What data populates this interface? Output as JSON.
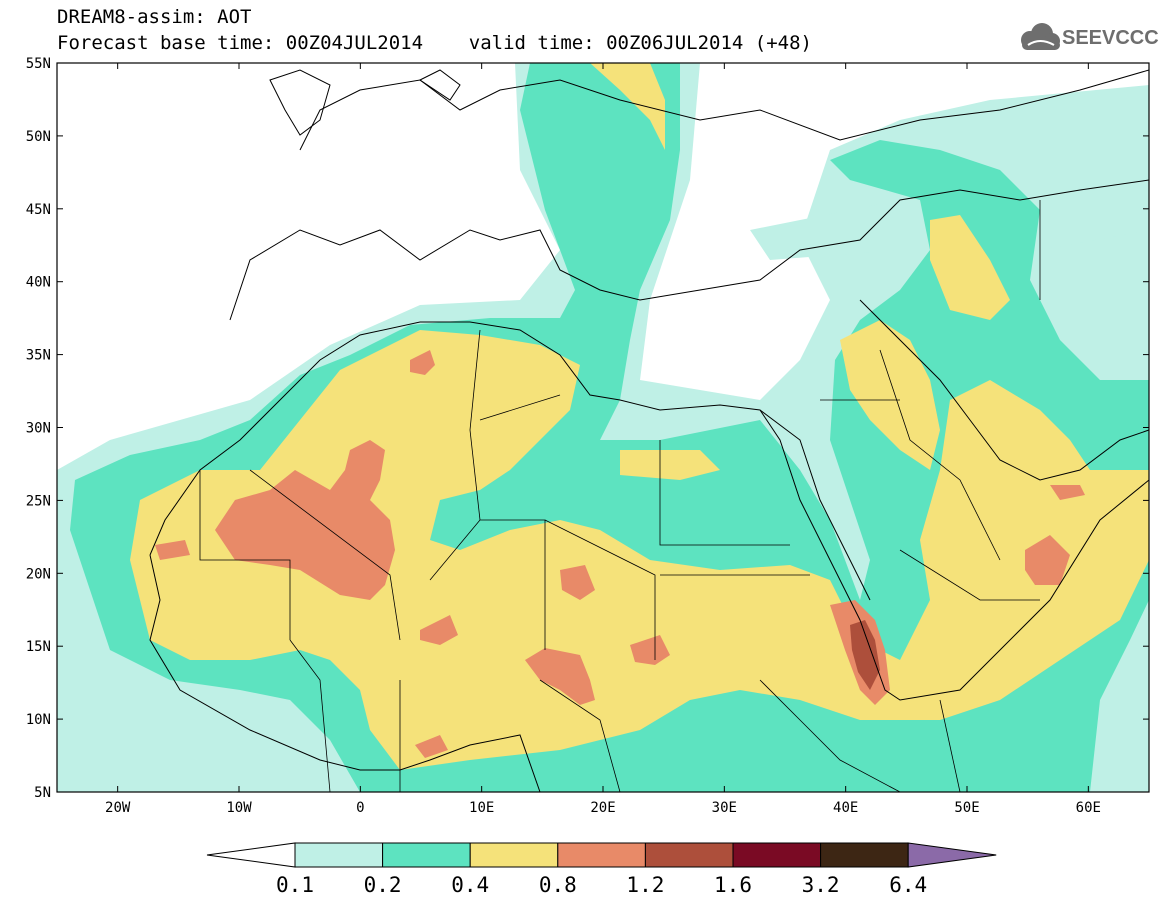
{
  "header": {
    "title_line1": "DREAM8-assim: AOT",
    "title_line2": "Forecast base time: 00Z04JUL2014    valid time: 00Z06JUL2014 (+48)",
    "logo_text": "SEEVCCC"
  },
  "axes": {
    "lat_labels": [
      "55N",
      "50N",
      "45N",
      "40N",
      "35N",
      "30N",
      "25N",
      "20N",
      "15N",
      "10N",
      "5N"
    ],
    "lon_labels": [
      "20W",
      "10W",
      "0",
      "10E",
      "20E",
      "30E",
      "40E",
      "50E",
      "60E"
    ],
    "lon_range": [
      -25,
      65
    ],
    "lat_range": [
      5,
      55
    ]
  },
  "colorbar": {
    "labels": [
      "0.1",
      "0.2",
      "0.4",
      "0.8",
      "1.2",
      "1.6",
      "3.2",
      "6.4"
    ],
    "colors": [
      "#ffffff",
      "#bff0e6",
      "#5de3c0",
      "#f5e27a",
      "#e88a68",
      "#ad4f3b",
      "#7a0a24",
      "#3d2614",
      "#8b6aa8"
    ]
  },
  "legend": {
    "level_0_1_0_2": "#bff0e6",
    "level_0_2_0_4": "#5de3c0",
    "level_0_4_0_8": "#f5e27a",
    "level_0_8_1_2": "#e88a68",
    "level_1_2_1_6": "#ad4f3b"
  }
}
